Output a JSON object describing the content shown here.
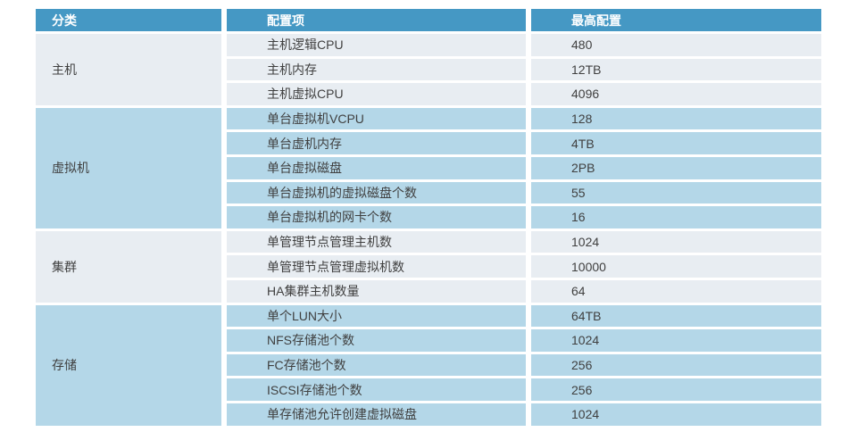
{
  "table": {
    "columns": [
      {
        "label": "分类"
      },
      {
        "label": "配置项"
      },
      {
        "label": "最高配置"
      }
    ],
    "groups": [
      {
        "category": "主机",
        "rows": [
          {
            "item": "主机逻辑CPU",
            "value": "480"
          },
          {
            "item": "主机内存",
            "value": "12TB"
          },
          {
            "item": "主机虚拟CPU",
            "value": "4096"
          }
        ]
      },
      {
        "category": "虚拟机",
        "rows": [
          {
            "item": "单台虚拟机VCPU",
            "value": "128"
          },
          {
            "item": "单台虚机内存",
            "value": "4TB"
          },
          {
            "item": "单台虚拟磁盘",
            "value": "2PB"
          },
          {
            "item": "单台虚拟机的虚拟磁盘个数",
            "value": "55"
          },
          {
            "item": "单台虚拟机的网卡个数",
            "value": "16"
          }
        ]
      },
      {
        "category": "集群",
        "rows": [
          {
            "item": "单管理节点管理主机数",
            "value": "1024"
          },
          {
            "item": "单管理节点管理虚拟机数",
            "value": "10000"
          },
          {
            "item": "HA集群主机数量",
            "value": "64"
          }
        ]
      },
      {
        "category": "存储",
        "rows": [
          {
            "item": "单个LUN大小",
            "value": "64TB"
          },
          {
            "item": "NFS存储池个数",
            "value": "1024"
          },
          {
            "item": "FC存储池个数",
            "value": "256"
          },
          {
            "item": "ISCSI存储池个数",
            "value": "256"
          },
          {
            "item": "单存储池允许创建虚拟磁盘",
            "value": "1024"
          }
        ]
      }
    ],
    "colors": {
      "header_bg": "#4598C4",
      "header_text": "#FFFFFF",
      "band_light": "#E8EDF2",
      "band_blue": "#B4D7E8",
      "text": "#404040"
    }
  }
}
